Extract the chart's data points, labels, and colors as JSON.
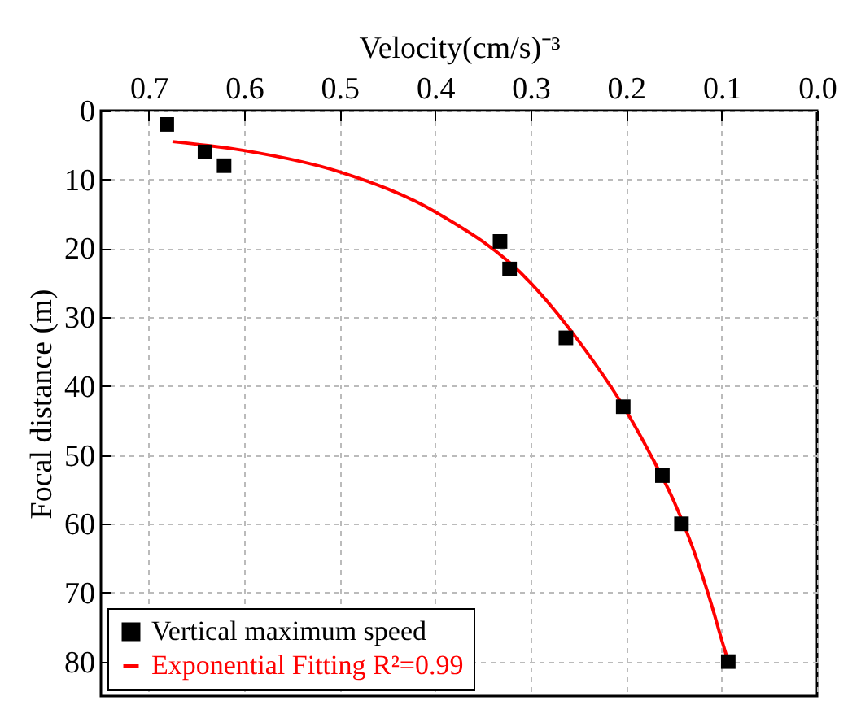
{
  "chart_data": {
    "type": "scatter",
    "xlabel": "Velocity(cm/s)⁻³",
    "ylabel": "Focal distance (m)",
    "xlim": [
      0.75,
      0
    ],
    "xticks": [
      0.7,
      0.6,
      0.5,
      0.4,
      0.3,
      0.2,
      0.1,
      {
        "value": 0,
        "label": "0.0"
      }
    ],
    "ylim": [
      85,
      0
    ],
    "yticks": [
      0,
      10,
      20,
      30,
      40,
      50,
      60,
      70,
      80
    ],
    "grid": true,
    "legend": "bottom left",
    "series": [
      {
        "name": "Vertical maximum speed",
        "marker": "square",
        "color": "#000000",
        "x": [
          0.681,
          0.641,
          0.621,
          0.332,
          0.322,
          0.263,
          0.203,
          0.162,
          0.142,
          0.093
        ],
        "values": [
          2,
          6,
          8,
          19,
          23,
          33,
          43,
          53,
          60,
          80
        ]
      },
      {
        "name": "Exponential Fitting R²=0.99",
        "type": "line",
        "marker": "none",
        "color": "#ff0000",
        "x": [
          0.675,
          0.6,
          0.5,
          0.4,
          0.3,
          0.25,
          0.2,
          0.175,
          0.15,
          0.125,
          0.11,
          0.1,
          0.093
        ],
        "values": [
          4.5,
          5.8,
          8.9,
          14.7,
          25,
          33.4,
          43.6,
          49.8,
          56.7,
          65.5,
          72,
          76.8,
          80
        ]
      }
    ]
  }
}
